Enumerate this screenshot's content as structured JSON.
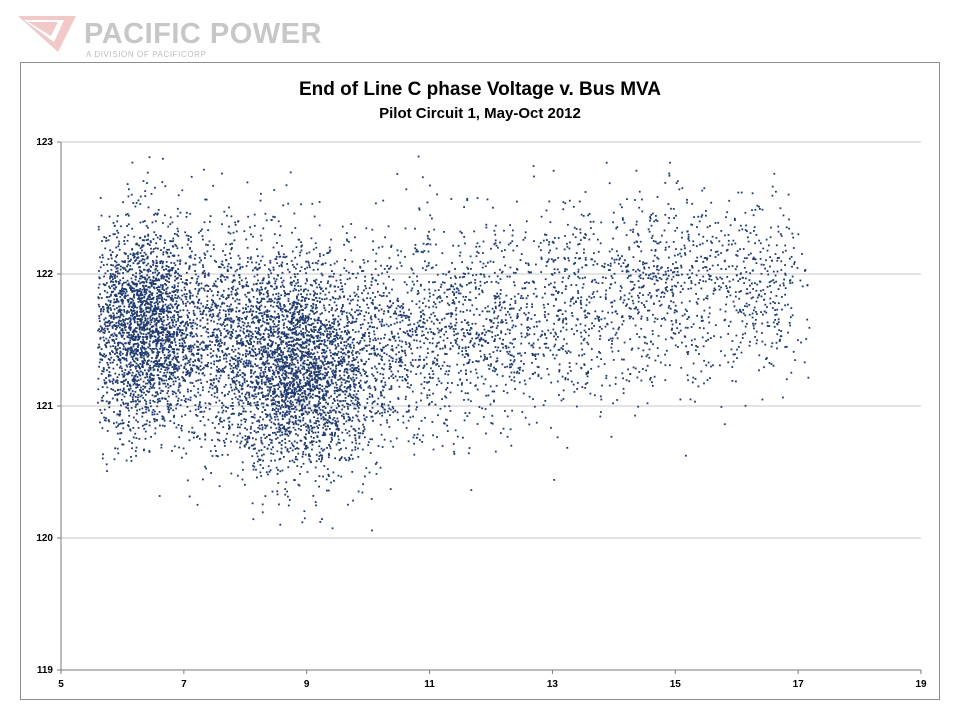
{
  "brand": {
    "name": "PACIFIC POWER",
    "tagline": "A DIVISION OF PACIFICORP",
    "mark_color": "#f2c9c9",
    "text_color": "#c7c7c7"
  },
  "chart_data": {
    "type": "scatter",
    "title": "End of Line C phase Voltage v. Bus MVA",
    "subtitle": "Pilot Circuit 1, May-Oct 2012",
    "xlabel": "",
    "ylabel": "",
    "xlim": [
      5,
      19
    ],
    "ylim": [
      119,
      123
    ],
    "xticks": [
      5,
      7,
      9,
      11,
      13,
      15,
      17,
      19
    ],
    "yticks": [
      119,
      120,
      121,
      122,
      123
    ],
    "grid": "horizontal",
    "legend": "none",
    "marker_color": "#1f3a6e",
    "series": [
      {
        "description_of_density": "dense cloud of several thousand points",
        "clusters": [
          {
            "x_mean": 6.3,
            "x_sd": 0.45,
            "y_mean": 121.6,
            "y_sd": 0.38,
            "count": 2200
          },
          {
            "x_mean": 8.9,
            "x_sd": 0.6,
            "y_mean": 121.2,
            "y_sd": 0.38,
            "count": 2000
          },
          {
            "x_mean": 7.8,
            "x_sd": 0.9,
            "y_mean": 121.55,
            "y_sd": 0.42,
            "count": 1800
          },
          {
            "x_mean": 10.5,
            "x_sd": 1.1,
            "y_mean": 121.5,
            "y_sd": 0.4,
            "count": 1300
          },
          {
            "x_mean": 13.0,
            "x_sd": 1.2,
            "y_mean": 121.75,
            "y_sd": 0.38,
            "count": 900
          },
          {
            "x_mean": 15.3,
            "x_sd": 0.9,
            "y_mean": 121.95,
            "y_sd": 0.35,
            "count": 650
          },
          {
            "x_mean": 16.6,
            "x_sd": 0.35,
            "y_mean": 121.85,
            "y_sd": 0.33,
            "count": 160
          }
        ],
        "x_range_observed": [
          5.6,
          17.2
        ],
        "y_range_observed": [
          120.0,
          122.9
        ]
      }
    ]
  }
}
